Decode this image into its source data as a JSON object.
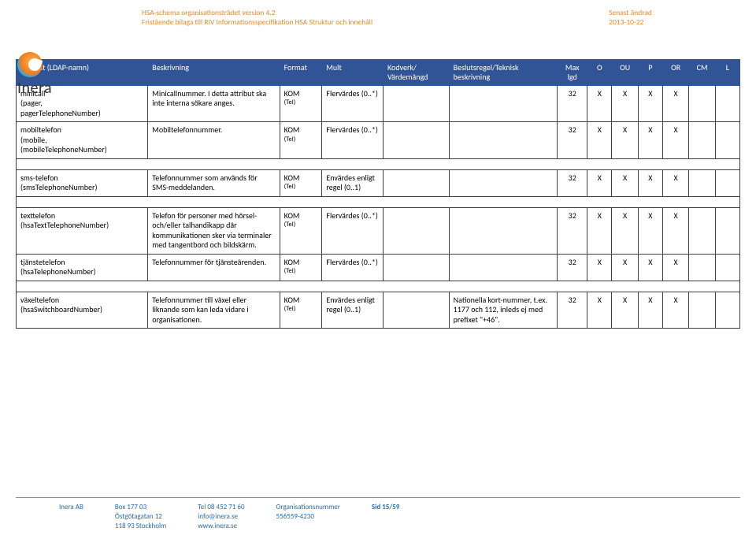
{
  "header": {
    "line1": "HSA-schema organisationsträdet version 4.2",
    "line2": "Fristående bilaga till RIV Informationsspecifikation HSA Struktur och innehåll",
    "changed_label": "Senast ändrad",
    "changed_date": "2013-10-22"
  },
  "logo": {
    "text": "Inera"
  },
  "columns": {
    "attr": "Attribut (LDAP-namn)",
    "desc": "Beskrivning",
    "format": "Format",
    "mult": "Mult",
    "kodverk": "Kodverk/ Värdemängd",
    "beslut": "Beslutsregel/Teknisk beskrivning",
    "maxlgd": "Max lgd",
    "O": "O",
    "OU": "OU",
    "P": "P",
    "OR": "OR",
    "CM": "CM",
    "L": "L"
  },
  "col_widths": {
    "attr": 140,
    "desc": 140,
    "format": 45,
    "mult": 65,
    "kodverk": 70,
    "beslut": 115,
    "maxlgd": 32,
    "O": 26,
    "OU": 28,
    "P": 26,
    "OR": 28,
    "CM": 28,
    "L": 26
  },
  "colors": {
    "header_bg": "#305496",
    "header_fg": "#ffffff",
    "accent": "#e08a2e",
    "footer_fg": "#2a6aa8"
  },
  "rows": [
    {
      "attr_main": "minicall",
      "attr_sub1": "(pager,",
      "attr_sub2": "pagerTelephoneNumber)",
      "desc": "Minicallnummer. I detta attribut ska inte interna sökare anges.",
      "format": "KOM",
      "format_sub": "(Tel)",
      "mult": "Flervärdes (0..*)",
      "kodverk": "",
      "beslut": "",
      "maxlgd": "32",
      "O": "X",
      "OU": "X",
      "P": "X",
      "OR": "X",
      "CM": "",
      "L": ""
    },
    {
      "attr_main": "mobiltelefon",
      "attr_sub1": "(mobile,",
      "attr_sub2": "(mobileTelephoneNumber)",
      "desc": "Mobiltelefonnummer.",
      "format": "KOM",
      "format_sub": "(Tel)",
      "mult": "Flervärdes (0..*)",
      "kodverk": "",
      "beslut": "",
      "maxlgd": "32",
      "O": "X",
      "OU": "X",
      "P": "X",
      "OR": "X",
      "CM": "",
      "L": ""
    },
    {
      "spacer": true
    },
    {
      "attr_main": "sms-telefon",
      "attr_sub1": "(smsTelephoneNumber)",
      "attr_sub2": "",
      "desc": "Telefonnummer som används för SMS-meddelanden.",
      "format": "KOM",
      "format_sub": "(Tel)",
      "mult": "Envärdes enligt regel (0..1)",
      "kodverk": "",
      "beslut": "",
      "maxlgd": "32",
      "O": "X",
      "OU": "X",
      "P": "X",
      "OR": "X",
      "CM": "",
      "L": ""
    },
    {
      "spacer": true
    },
    {
      "attr_main": "texttelefon",
      "attr_sub1": "(hsaTextTelephoneNumber)",
      "attr_sub2": "",
      "desc": "Telefon för personer med hörsel- och/eller talhandikapp där kommunikationen sker via terminaler med tangentbord och bildskärm.",
      "format": "KOM",
      "format_sub": "(Tel)",
      "mult": "Flervärdes (0..*)",
      "kodverk": "",
      "beslut": "",
      "maxlgd": "32",
      "O": "X",
      "OU": "X",
      "P": "X",
      "OR": "X",
      "CM": "",
      "L": ""
    },
    {
      "attr_main": "tjänstetelefon",
      "attr_sub1": "(hsaTelephoneNumber)",
      "attr_sub2": "",
      "desc": "Telefonnummer för tjänsteärenden.",
      "format": "KOM",
      "format_sub": "(Tel)",
      "mult": "Flervärdes (0..*)",
      "kodverk": "",
      "beslut": "",
      "maxlgd": "32",
      "O": "X",
      "OU": "X",
      "P": "X",
      "OR": "X",
      "CM": "",
      "L": ""
    },
    {
      "spacer": true
    },
    {
      "attr_main": "växeltelefon",
      "attr_sub1": "(hsaSwitchboardNumber)",
      "attr_sub2": "",
      "desc": "Telefonnummer till växel eller liknande som kan leda vidare i organisationen.",
      "format": "KOM",
      "format_sub": "(Tel)",
      "mult": "Envärdes enligt regel (0..1)",
      "kodverk": "",
      "beslut": "Nationella kort-nummer, t.ex. 1177 och 112, inleds ej med prefixet \"+46\".",
      "maxlgd": "32",
      "O": "X",
      "OU": "X",
      "P": "X",
      "OR": "X",
      "CM": "",
      "L": ""
    }
  ],
  "footer": {
    "company": "Inera AB",
    "addr1": "Box 177 03",
    "addr2": "Östgötagatan 12",
    "addr3": "118 93 Stockholm",
    "tel": "Tel 08 452 71 60",
    "email": "info@inera.se",
    "web": "www.inera.se",
    "org_label": "Organisationsnummer",
    "org_num": "556559-4230",
    "page": "Sid 15/59"
  }
}
